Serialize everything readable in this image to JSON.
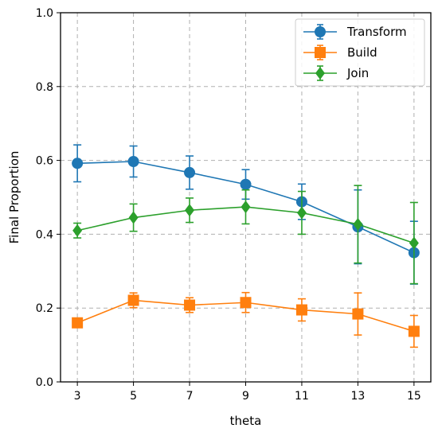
{
  "chart_data": {
    "type": "line",
    "xlabel": "theta",
    "ylabel": "Final Proportion",
    "x": [
      3,
      5,
      7,
      9,
      11,
      13,
      15
    ],
    "xlim": [
      2.4,
      15.6
    ],
    "ylim": [
      0.0,
      1.0
    ],
    "x_ticks": [
      "3",
      "5",
      "7",
      "9",
      "11",
      "13",
      "15"
    ],
    "y_ticks": [
      "0.0",
      "0.2",
      "0.4",
      "0.6",
      "0.8",
      "1.0"
    ],
    "y_tick_values": [
      0.0,
      0.2,
      0.4,
      0.6,
      0.8,
      1.0
    ],
    "grid": true,
    "legend_position": "top-right",
    "series": [
      {
        "name": "Transform",
        "color": "#1f77b4",
        "marker": "circle",
        "values": [
          0.592,
          0.597,
          0.567,
          0.535,
          0.488,
          0.42,
          0.35
        ],
        "err": [
          0.05,
          0.042,
          0.045,
          0.04,
          0.048,
          0.1,
          0.085
        ]
      },
      {
        "name": "Build",
        "color": "#ff7f0e",
        "marker": "square",
        "values": [
          0.16,
          0.221,
          0.208,
          0.215,
          0.195,
          0.184,
          0.137
        ],
        "err": [
          0.01,
          0.02,
          0.02,
          0.027,
          0.03,
          0.057,
          0.043
        ]
      },
      {
        "name": "Join",
        "color": "#2ca02c",
        "marker": "diamond",
        "values": [
          0.41,
          0.445,
          0.465,
          0.474,
          0.458,
          0.427,
          0.376
        ],
        "err": [
          0.02,
          0.037,
          0.033,
          0.046,
          0.058,
          0.105,
          0.11
        ]
      }
    ]
  }
}
